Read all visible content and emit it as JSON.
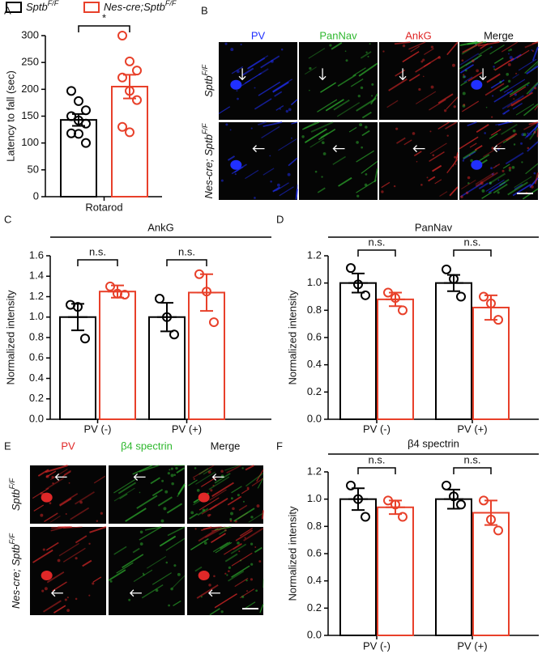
{
  "legend": [
    {
      "label": "Sptb",
      "superscript": "F/F",
      "color": "#000000"
    },
    {
      "label": "Nes-cre;Sptb",
      "superscript": "F/F",
      "color": "#e8402a"
    }
  ],
  "image_panels": [
    {
      "letter": "B",
      "columns": [
        {
          "label": "PV",
          "color": "#2030ff"
        },
        {
          "label": "PanNav",
          "color": "#2fb82f"
        },
        {
          "label": "AnkG",
          "color": "#e02828"
        },
        {
          "label": "Merge",
          "color": "#111111"
        }
      ],
      "rows": [
        {
          "label": "Sptb",
          "superscript": "F/F"
        },
        {
          "label": "Nes-cre; Sptb",
          "superscript": "F/F"
        }
      ]
    },
    {
      "letter": "E",
      "columns": [
        {
          "label": "PV",
          "color": "#e02828"
        },
        {
          "label": "β4 spectrin",
          "color": "#2fb82f"
        },
        {
          "label": "Merge",
          "color": "#111111"
        }
      ],
      "rows": [
        {
          "label": "Sptb",
          "superscript": "F/F"
        },
        {
          "label": "Nes-cre; Sptb",
          "superscript": "F/F"
        }
      ]
    }
  ],
  "chart_data": [
    {
      "type": "bar",
      "panel": "A",
      "y_label": "Latency to fall (sec)",
      "categories": [
        "Rotarod"
      ],
      "ylim": [
        0,
        300
      ],
      "yticks": [
        0,
        50,
        100,
        150,
        200,
        250,
        300
      ],
      "comparisons": [
        "*"
      ],
      "series": [
        {
          "color": "#000000",
          "values": [
            143
          ],
          "errors": [
            11
          ],
          "points": [
            [
              197,
              178,
              161,
              150,
              142,
              136,
              118,
              117,
              100
            ]
          ]
        },
        {
          "color": "#e8402a",
          "values": [
            205
          ],
          "errors": [
            22
          ],
          "points": [
            [
              300,
              252,
              235,
              222,
              197,
              180,
              130,
              120
            ]
          ]
        }
      ]
    },
    {
      "type": "bar",
      "panel": "C",
      "title": "AnkG",
      "y_label": "Normalized intensity",
      "categories": [
        "PV (-)",
        "PV (+)"
      ],
      "ylim": [
        0,
        1.6
      ],
      "yticks": [
        {
          "value": 0,
          "label": "0.0"
        },
        0.2,
        0.4,
        0.6,
        0.8,
        {
          "value": 1,
          "label": "1.0"
        },
        1.2,
        1.4,
        1.6
      ],
      "comparisons": [
        "n.s.",
        "n.s."
      ],
      "series": [
        {
          "color": "#000000",
          "values": [
            1.0,
            1.0
          ],
          "errors": [
            0.13,
            0.14
          ],
          "points": [
            [
              1.12,
              1.1,
              0.79
            ],
            [
              1.18,
              1.0,
              0.83
            ]
          ]
        },
        {
          "color": "#e8402a",
          "values": [
            1.25,
            1.24
          ],
          "errors": [
            0.06,
            0.18
          ],
          "points": [
            [
              1.3,
              1.23,
              1.22
            ],
            [
              1.42,
              1.25,
              0.95
            ]
          ]
        }
      ]
    },
    {
      "type": "bar",
      "panel": "D",
      "title": "PanNav",
      "y_label": "Normalized intensity",
      "categories": [
        "PV (-)",
        "PV (+)"
      ],
      "ylim": [
        0,
        1.2
      ],
      "yticks": [
        {
          "value": 0,
          "label": "0.0"
        },
        0.2,
        0.4,
        0.6,
        0.8,
        {
          "value": 1,
          "label": "1.0"
        },
        1.2
      ],
      "comparisons": [
        "n.s.",
        "n.s."
      ],
      "series": [
        {
          "color": "#000000",
          "values": [
            1.0,
            1.0
          ],
          "errors": [
            0.07,
            0.06
          ],
          "points": [
            [
              1.11,
              0.99,
              0.91
            ],
            [
              1.1,
              1.03,
              0.9
            ]
          ]
        },
        {
          "color": "#e8402a",
          "values": [
            0.88,
            0.82
          ],
          "errors": [
            0.05,
            0.09
          ],
          "points": [
            [
              0.93,
              0.89,
              0.8
            ],
            [
              0.9,
              0.85,
              0.73
            ]
          ]
        }
      ]
    },
    {
      "type": "bar",
      "panel": "F",
      "title": "β4 spectrin",
      "y_label": "Normalized intensity",
      "categories": [
        "PV (-)",
        "PV (+)"
      ],
      "ylim": [
        0,
        1.2
      ],
      "yticks": [
        {
          "value": 0,
          "label": "0.0"
        },
        0.2,
        0.4,
        0.6,
        0.8,
        {
          "value": 1,
          "label": "1.0"
        },
        1.2
      ],
      "comparisons": [
        "n.s.",
        "n.s."
      ],
      "series": [
        {
          "color": "#000000",
          "values": [
            1.0,
            1.0
          ],
          "errors": [
            0.08,
            0.07
          ],
          "points": [
            [
              1.1,
              1.0,
              0.87
            ],
            [
              1.1,
              1.02,
              0.96
            ]
          ]
        },
        {
          "color": "#e8402a",
          "values": [
            0.94,
            0.9
          ],
          "errors": [
            0.05,
            0.09
          ],
          "points": [
            [
              0.99,
              0.96,
              0.87
            ],
            [
              0.99,
              0.85,
              0.77
            ]
          ]
        }
      ]
    }
  ]
}
